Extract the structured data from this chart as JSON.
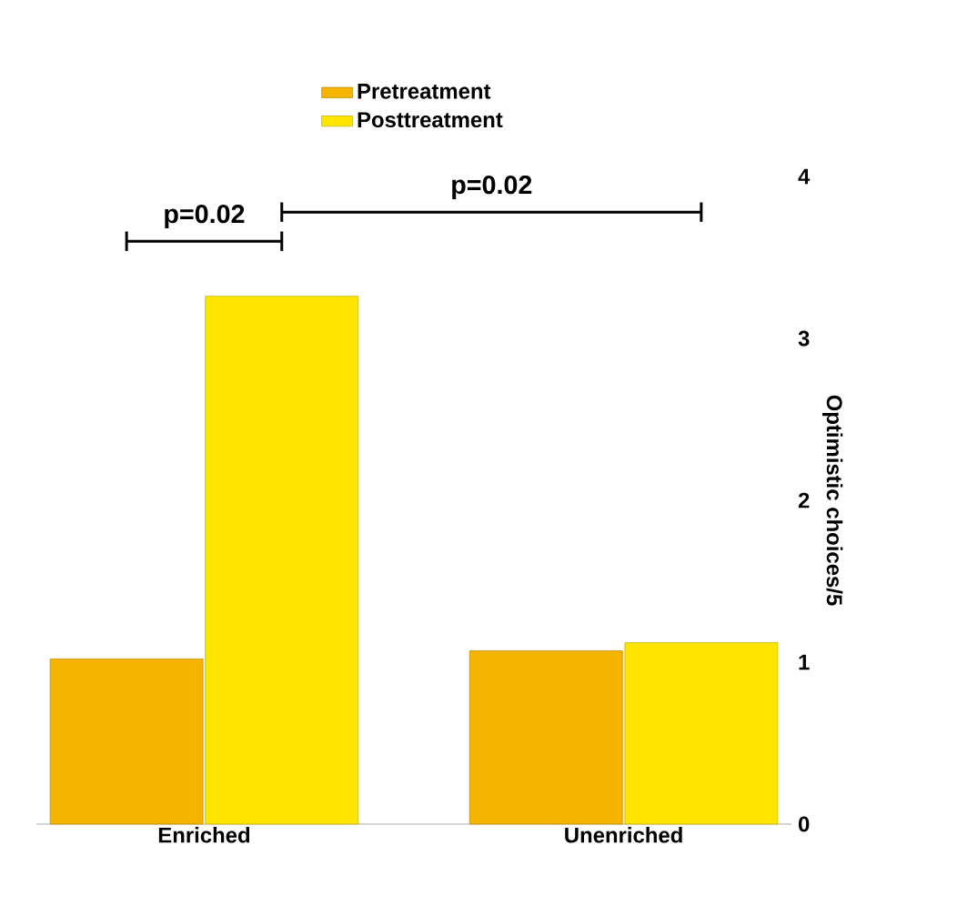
{
  "chart_data": {
    "type": "bar",
    "ylabel": "Optimistic choices/5",
    "categories": [
      "Enriched",
      "Unenriched"
    ],
    "series": [
      {
        "name": "Pretreatment",
        "color": "#f5b400",
        "values": [
          1.02,
          1.07
        ]
      },
      {
        "name": "Posttreatment",
        "color": "#ffe400",
        "values": [
          3.26,
          1.12
        ]
      }
    ],
    "ylim": [
      0,
      4
    ],
    "yticks": [
      0,
      1,
      2,
      3,
      4
    ],
    "legend": "top",
    "grid": false,
    "annotations": [
      "p=0.02",
      "p=0.02"
    ]
  }
}
